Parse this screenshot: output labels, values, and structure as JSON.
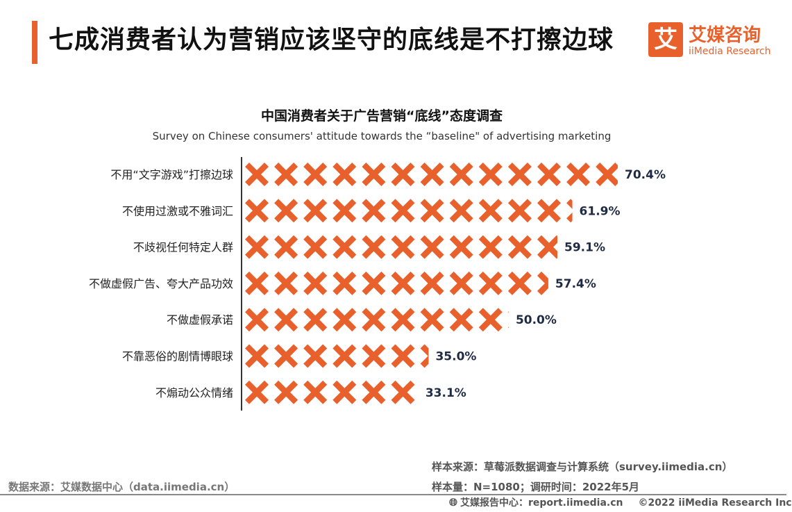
{
  "header": {
    "title": "七成消费者认为营销应该坚守的底线是不打擦边球",
    "logo_cn": "艾媒咨询",
    "logo_en": "iiMedia Research",
    "logo_glyph": "艾"
  },
  "chart_data": {
    "type": "bar",
    "orientation": "horizontal",
    "title": "中国消费者关于广告营销“底线”态度调查",
    "subtitle": "Survey on Chinese consumers' attitude towards the “baseline\" of advertising marketing",
    "unit": "%",
    "categories": [
      "不用“文字游戏”打擦边球",
      "不使用过激或不雅词汇",
      "不歧视任何特定人群",
      "不做虚假广告、夸大产品功效",
      "不做虚假承诺",
      "不靠恶俗的剧情博眼球",
      "不煽动公众情绪"
    ],
    "values": [
      70.4,
      61.9,
      59.1,
      57.4,
      50.0,
      35.0,
      33.1
    ],
    "value_labels": [
      "70.4%",
      "61.9%",
      "59.1%",
      "57.4%",
      "50.0%",
      "35.0%",
      "33.1%"
    ],
    "bar_color": "#e8612c",
    "bar_style": "pictograph-x"
  },
  "sources": {
    "sample_source": "样本来源：草莓派数据调查与计算系统（survey.iimedia.cn）",
    "sample_size": "样本量：N=1080；调研时间：2022年5月",
    "data_source": "数据来源：艾媒数据中心（data.iimedia.cn）"
  },
  "footer": {
    "report_center": "艾媒报告中心：report.iimedia.cn",
    "copyright": "©2022  iiMedia Research  Inc",
    "globe_icon": "globe-icon"
  }
}
